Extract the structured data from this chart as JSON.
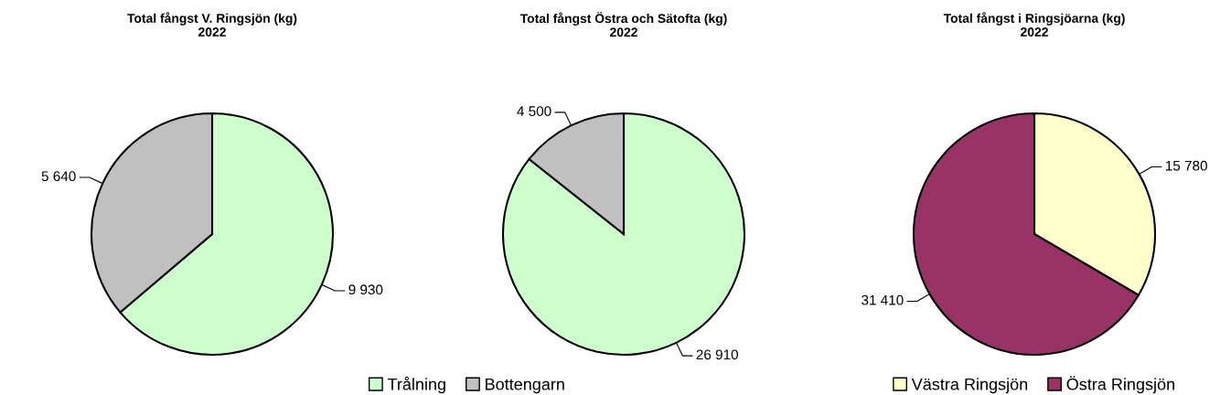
{
  "chart_data": [
    {
      "type": "pie",
      "title": "Total fångst V. Ringsjön (kg)\n2022",
      "categories": [
        "Trålning",
        "Bottengarn"
      ],
      "values": [
        9930,
        5640
      ],
      "colors": [
        "#ccffcc",
        "#c0c0c0"
      ],
      "value_labels": [
        "9 930",
        "5 640"
      ],
      "legend": "bottom right"
    },
    {
      "type": "pie",
      "title": "Total fångst Östra och Sätofta (kg)\n2022",
      "categories": [
        null,
        null
      ],
      "values": [
        26910,
        4500
      ],
      "colors": [
        "#ccffcc",
        "#c0c0c0"
      ],
      "value_labels": [
        "26 910",
        "4 500"
      ],
      "legend": false
    },
    {
      "type": "pie",
      "title": "Total fångst i Ringsjöarna (kg)\n2022",
      "categories": [
        "Västra Ringsjön",
        "Östra Ringsjön"
      ],
      "values": [
        15780,
        31410
      ],
      "colors": [
        "#ffffcc",
        "#993366"
      ],
      "value_labels": [
        "15 780",
        "31 410"
      ],
      "legend": "bottom"
    }
  ]
}
